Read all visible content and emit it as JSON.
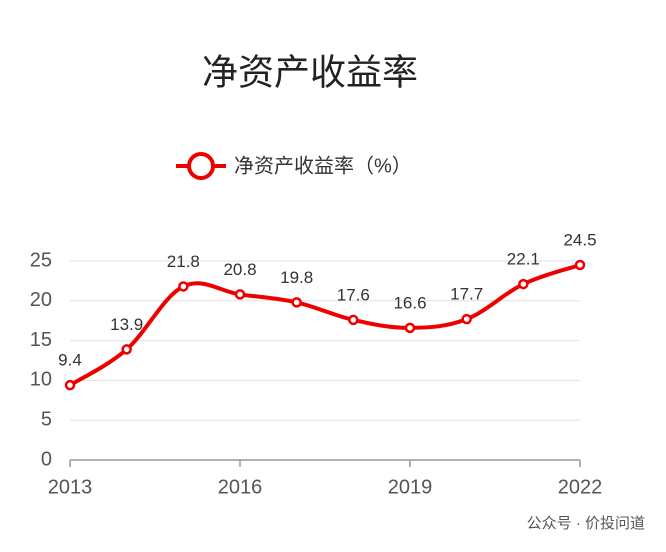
{
  "chart_data": {
    "type": "line",
    "title": "净资产收益率",
    "x": [
      2013,
      2014,
      2015,
      2016,
      2017,
      2018,
      2019,
      2020,
      2021,
      2022
    ],
    "series": [
      {
        "name": "净资产收益率（%）",
        "color": "#ee0000",
        "values": [
          9.4,
          13.9,
          21.8,
          20.8,
          19.8,
          17.6,
          16.6,
          17.7,
          22.1,
          24.5
        ]
      }
    ],
    "xlim": [
      2013,
      2022
    ],
    "xticks": [
      2013,
      2016,
      2019,
      2022
    ],
    "ylim": [
      0,
      25
    ],
    "yticks": [
      0,
      5,
      10,
      15,
      20,
      25
    ],
    "grid": true,
    "legend": "top",
    "watermark": "公众号 · 价投问道"
  }
}
